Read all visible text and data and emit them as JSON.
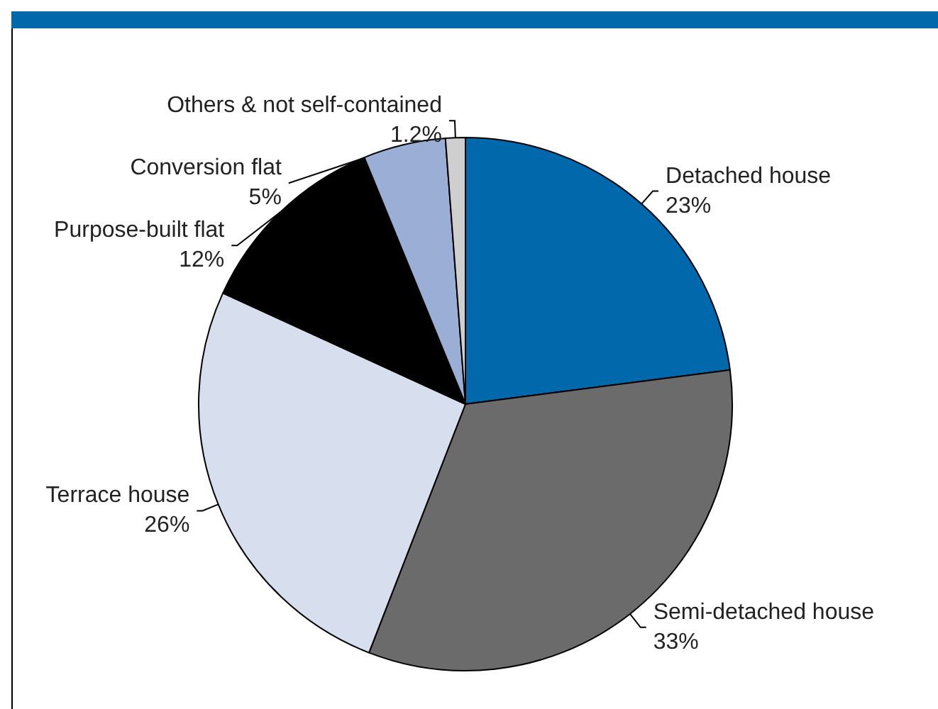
{
  "chart_data": {
    "type": "pie",
    "categories": [
      "Detached house",
      "Semi-detached house",
      "Terrace house",
      "Purpose-built flat",
      "Conversion flat",
      "Others & not self-contained"
    ],
    "values": [
      23,
      33,
      26,
      12,
      5,
      1.2
    ],
    "value_labels": [
      "23%",
      "33%",
      "26%",
      "12%",
      "5%",
      "1.2%"
    ],
    "colors": [
      "#0068ab",
      "#6b6b6b",
      "#d7dfef",
      "#000000",
      "#9aaed6",
      "#cfcfcf"
    ],
    "legend": false
  }
}
